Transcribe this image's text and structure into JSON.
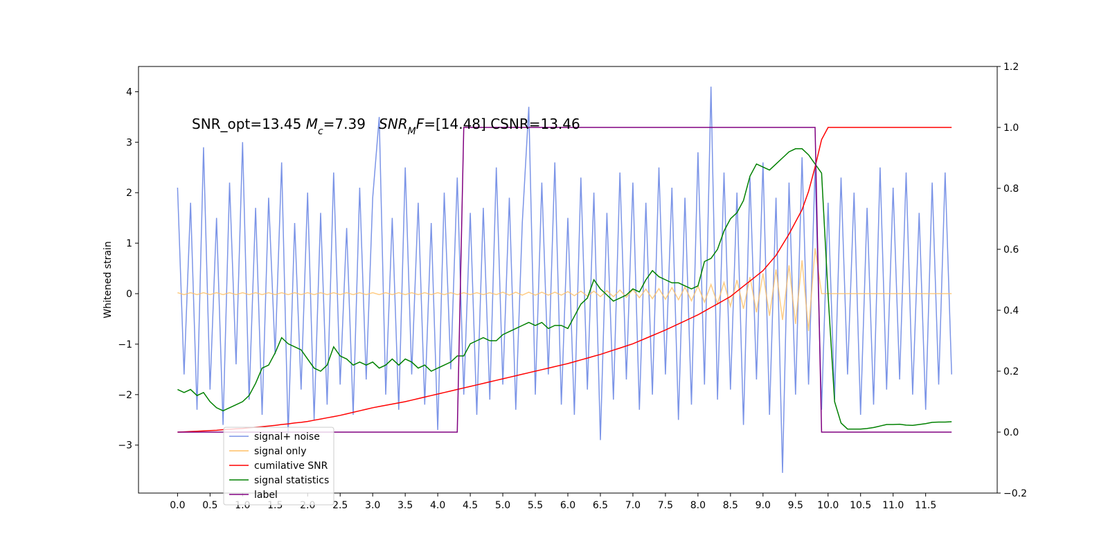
{
  "chart_data": {
    "type": "line",
    "annotation": [
      {
        "text": "SNR_opt=13.45 "
      },
      {
        "text": "M",
        "italic": true
      },
      {
        "text": "c",
        "italic": true,
        "sub": true
      },
      {
        "text": "=7.39   "
      },
      {
        "text": "SNR",
        "italic": true
      },
      {
        "text": "M",
        "italic": true,
        "sub": true
      },
      {
        "text": "F",
        "italic": true
      },
      {
        "text": "=[14.48] CSNR=13.46"
      }
    ],
    "ylabel": "Whitened strain",
    "xlim": [
      -0.6,
      12.6
    ],
    "ylim": [
      -3.95,
      4.5
    ],
    "y2lim": [
      -0.2,
      1.2
    ],
    "xticks": [
      {
        "value": 0,
        "label": "0.0"
      },
      {
        "value": 0.5,
        "label": "0.5"
      },
      {
        "value": 1,
        "label": "1.0"
      },
      {
        "value": 1.5,
        "label": "1.5"
      },
      {
        "value": 2,
        "label": "2.0"
      },
      {
        "value": 2.5,
        "label": "2.5"
      },
      {
        "value": 3,
        "label": "3.0"
      },
      {
        "value": 3.5,
        "label": "3.5"
      },
      {
        "value": 4,
        "label": "4.0"
      },
      {
        "value": 4.5,
        "label": "4.5"
      },
      {
        "value": 5,
        "label": "5.0"
      },
      {
        "value": 5.5,
        "label": "5.5"
      },
      {
        "value": 6,
        "label": "6.0"
      },
      {
        "value": 6.5,
        "label": "6.5"
      },
      {
        "value": 7,
        "label": "7.0"
      },
      {
        "value": 7.5,
        "label": "7.5"
      },
      {
        "value": 8,
        "label": "8.0"
      },
      {
        "value": 8.5,
        "label": "8.5"
      },
      {
        "value": 9,
        "label": "9.0"
      },
      {
        "value": 9.5,
        "label": "9.5"
      },
      {
        "value": 10,
        "label": "10.0"
      },
      {
        "value": 10.5,
        "label": "10.5"
      },
      {
        "value": 11,
        "label": "11.0"
      },
      {
        "value": 11.5,
        "label": "11.5"
      }
    ],
    "yticks": [
      {
        "value": -3,
        "label": "−3"
      },
      {
        "value": -2,
        "label": "−2"
      },
      {
        "value": -1,
        "label": "−1"
      },
      0,
      1,
      2,
      3,
      4
    ],
    "y2ticks": [
      {
        "value": -0.2,
        "label": "−0.2"
      },
      {
        "value": 0,
        "label": "0.0"
      },
      0.2,
      0.4,
      0.6,
      0.8,
      {
        "value": 1,
        "label": "1.0"
      },
      1.2
    ],
    "legend": "lower left",
    "x": [
      0.0,
      0.1,
      0.2,
      0.3,
      0.4,
      0.5,
      0.6,
      0.7,
      0.8,
      0.9,
      1.0,
      1.1,
      1.2,
      1.3,
      1.4,
      1.5,
      1.6,
      1.7,
      1.8,
      1.9,
      2.0,
      2.1,
      2.2,
      2.3,
      2.4,
      2.5,
      2.6,
      2.7,
      2.8,
      2.9,
      3.0,
      3.1,
      3.2,
      3.3,
      3.4,
      3.5,
      3.6,
      3.7,
      3.8,
      3.9,
      4.0,
      4.1,
      4.2,
      4.3,
      4.4,
      4.5,
      4.6,
      4.7,
      4.8,
      4.9,
      5.0,
      5.1,
      5.2,
      5.3,
      5.4,
      5.5,
      5.6,
      5.7,
      5.8,
      5.9,
      6.0,
      6.1,
      6.2,
      6.3,
      6.4,
      6.5,
      6.6,
      6.7,
      6.8,
      6.9,
      7.0,
      7.1,
      7.2,
      7.3,
      7.4,
      7.5,
      7.6,
      7.7,
      7.8,
      7.9,
      8.0,
      8.1,
      8.2,
      8.3,
      8.4,
      8.5,
      8.6,
      8.7,
      8.8,
      8.9,
      9.0,
      9.1,
      9.2,
      9.3,
      9.4,
      9.5,
      9.6,
      9.7,
      9.8,
      9.9,
      10.0,
      10.1,
      10.2,
      10.3,
      10.4,
      10.5,
      10.6,
      10.7,
      10.8,
      10.9,
      11.0,
      11.1,
      11.2,
      11.3,
      11.4,
      11.5,
      11.6,
      11.7,
      11.8,
      11.9
    ],
    "series": [
      {
        "name": "signal+ noise",
        "color": "#7b94e7",
        "values": [
          2.1,
          -1.6,
          1.8,
          -2.3,
          2.9,
          -1.9,
          1.5,
          -2.6,
          2.2,
          -1.4,
          3.0,
          -2.1,
          1.7,
          -2.4,
          1.9,
          -1.2,
          2.6,
          -2.8,
          1.4,
          -1.9,
          2.0,
          -2.5,
          1.6,
          -2.2,
          2.4,
          -1.8,
          1.3,
          -2.4,
          2.1,
          -1.7,
          1.9,
          3.5,
          -2.0,
          1.5,
          -2.3,
          2.5,
          -1.6,
          1.8,
          -2.2,
          1.4,
          -2.7,
          2.0,
          -1.5,
          2.3,
          -2.0,
          1.6,
          -2.4,
          1.7,
          -2.1,
          2.5,
          -1.8,
          1.9,
          -2.3,
          1.4,
          3.7,
          -2.0,
          2.2,
          -1.6,
          2.6,
          -2.2,
          1.5,
          -2.4,
          2.3,
          -1.9,
          2.0,
          -2.9,
          1.6,
          -2.1,
          2.4,
          -1.7,
          2.2,
          -2.3,
          1.8,
          -2.0,
          2.5,
          -1.6,
          2.1,
          -2.5,
          1.9,
          -2.2,
          2.8,
          -1.8,
          4.1,
          -2.1,
          2.4,
          -1.9,
          2.0,
          -2.6,
          2.3,
          -1.7,
          2.6,
          -2.4,
          1.9,
          -3.55,
          2.2,
          -2.0,
          2.7,
          -1.8,
          2.5,
          -2.3,
          1.8,
          -2.1,
          2.3,
          -1.6,
          2.0,
          -2.4,
          1.7,
          -2.2,
          2.5,
          -1.9,
          2.1,
          -1.7,
          2.4,
          -2.0,
          1.6,
          -2.3,
          2.2,
          -1.8,
          2.4,
          -1.6
        ]
      },
      {
        "name": "signal only",
        "color": "#ffbf66",
        "values": [
          0.02,
          -0.02,
          0.02,
          -0.02,
          0.02,
          -0.02,
          0.02,
          -0.02,
          0.02,
          -0.02,
          0.02,
          -0.02,
          0.02,
          -0.02,
          0.02,
          -0.02,
          0.02,
          -0.02,
          0.02,
          -0.02,
          0.02,
          -0.02,
          0.02,
          -0.02,
          0.02,
          -0.02,
          0.02,
          -0.02,
          0.02,
          -0.02,
          0.02,
          -0.02,
          0.02,
          -0.02,
          0.02,
          -0.02,
          0.02,
          -0.02,
          0.02,
          -0.02,
          0.02,
          -0.02,
          0.02,
          -0.02,
          0.02,
          -0.02,
          0.02,
          -0.02,
          0.02,
          -0.02,
          0.03,
          -0.03,
          0.03,
          -0.03,
          0.03,
          -0.03,
          0.03,
          -0.03,
          0.03,
          -0.03,
          0.04,
          -0.04,
          0.05,
          -0.05,
          0.05,
          -0.06,
          0.06,
          -0.06,
          0.07,
          -0.07,
          0.08,
          -0.08,
          0.09,
          -0.1,
          0.1,
          -0.11,
          0.12,
          -0.12,
          0.13,
          -0.14,
          0.15,
          -0.17,
          0.18,
          -0.2,
          0.22,
          -0.25,
          0.27,
          -0.3,
          0.33,
          -0.37,
          0.4,
          -0.44,
          0.48,
          -0.52,
          0.56,
          -0.6,
          0.66,
          -0.74,
          0.9,
          0,
          0,
          0,
          0,
          0,
          0,
          0,
          0,
          0,
          0,
          0,
          0,
          0,
          0,
          0,
          0,
          0,
          0,
          0,
          0,
          0
        ]
      },
      {
        "name": "cumilative SNR",
        "color": "#ff0000",
        "axis": "y2",
        "values": [
          0,
          0.001,
          0.002,
          0.003,
          0.004,
          0.005,
          0.006,
          0.008,
          0.009,
          0.011,
          0.012,
          0.014,
          0.016,
          0.018,
          0.02,
          0.022,
          0.025,
          0.027,
          0.03,
          0.032,
          0.035,
          0.039,
          0.043,
          0.047,
          0.051,
          0.055,
          0.06,
          0.065,
          0.07,
          0.075,
          0.08,
          0.084,
          0.088,
          0.092,
          0.096,
          0.1,
          0.105,
          0.11,
          0.115,
          0.12,
          0.125,
          0.13,
          0.135,
          0.14,
          0.145,
          0.15,
          0.155,
          0.16,
          0.165,
          0.17,
          0.175,
          0.18,
          0.185,
          0.19,
          0.195,
          0.2,
          0.205,
          0.21,
          0.215,
          0.22,
          0.225,
          0.231,
          0.237,
          0.243,
          0.249,
          0.255,
          0.262,
          0.269,
          0.276,
          0.283,
          0.29,
          0.299,
          0.308,
          0.317,
          0.326,
          0.335,
          0.345,
          0.355,
          0.365,
          0.375,
          0.385,
          0.397,
          0.409,
          0.421,
          0.433,
          0.445,
          0.462,
          0.479,
          0.496,
          0.513,
          0.53,
          0.555,
          0.58,
          0.615,
          0.65,
          0.69,
          0.73,
          0.79,
          0.87,
          0.96,
          1,
          1,
          1,
          1,
          1,
          1,
          1,
          1,
          1,
          1,
          1,
          1,
          1,
          1,
          1,
          1,
          1,
          1,
          1,
          1
        ]
      },
      {
        "name": "signal statistics",
        "color": "#008000",
        "axis": "y2",
        "values": [
          0.14,
          0.13,
          0.14,
          0.12,
          0.13,
          0.1,
          0.08,
          0.07,
          0.08,
          0.09,
          0.1,
          0.12,
          0.16,
          0.21,
          0.22,
          0.26,
          0.31,
          0.29,
          0.28,
          0.27,
          0.24,
          0.21,
          0.2,
          0.22,
          0.28,
          0.25,
          0.24,
          0.22,
          0.23,
          0.22,
          0.23,
          0.21,
          0.22,
          0.24,
          0.22,
          0.24,
          0.23,
          0.21,
          0.22,
          0.2,
          0.21,
          0.22,
          0.23,
          0.25,
          0.25,
          0.29,
          0.3,
          0.31,
          0.3,
          0.3,
          0.32,
          0.33,
          0.34,
          0.35,
          0.36,
          0.35,
          0.36,
          0.34,
          0.35,
          0.35,
          0.34,
          0.38,
          0.42,
          0.44,
          0.5,
          0.47,
          0.45,
          0.43,
          0.44,
          0.45,
          0.47,
          0.46,
          0.5,
          0.53,
          0.51,
          0.5,
          0.49,
          0.49,
          0.48,
          0.47,
          0.48,
          0.56,
          0.57,
          0.6,
          0.66,
          0.7,
          0.72,
          0.76,
          0.84,
          0.88,
          0.87,
          0.86,
          0.88,
          0.9,
          0.92,
          0.93,
          0.93,
          0.91,
          0.88,
          0.85,
          0.45,
          0.1,
          0.03,
          0.01,
          0.01,
          0.01,
          0.012,
          0.015,
          0.02,
          0.025,
          0.025,
          0.026,
          0.023,
          0.022,
          0.025,
          0.028,
          0.032,
          0.033,
          0.033,
          0.034
        ]
      },
      {
        "name": "label",
        "color": "#800080",
        "axis": "y2",
        "values": [
          0,
          0,
          0,
          0,
          0,
          0,
          0,
          0,
          0,
          0,
          0,
          0,
          0,
          0,
          0,
          0,
          0,
          0,
          0,
          0,
          0,
          0,
          0,
          0,
          0,
          0,
          0,
          0,
          0,
          0,
          0,
          0,
          0,
          0,
          0,
          0,
          0,
          0,
          0,
          0,
          0,
          0,
          0,
          0,
          1,
          1,
          1,
          1,
          1,
          1,
          1,
          1,
          1,
          1,
          1,
          1,
          1,
          1,
          1,
          1,
          1,
          1,
          1,
          1,
          1,
          1,
          1,
          1,
          1,
          1,
          1,
          1,
          1,
          1,
          1,
          1,
          1,
          1,
          1,
          1,
          1,
          1,
          1,
          1,
          1,
          1,
          1,
          1,
          1,
          1,
          1,
          1,
          1,
          1,
          1,
          1,
          1,
          1,
          1,
          0,
          0,
          0,
          0,
          0,
          0,
          0,
          0,
          0,
          0,
          0,
          0,
          0,
          0,
          0,
          0,
          0,
          0,
          0,
          0,
          0
        ]
      }
    ]
  }
}
